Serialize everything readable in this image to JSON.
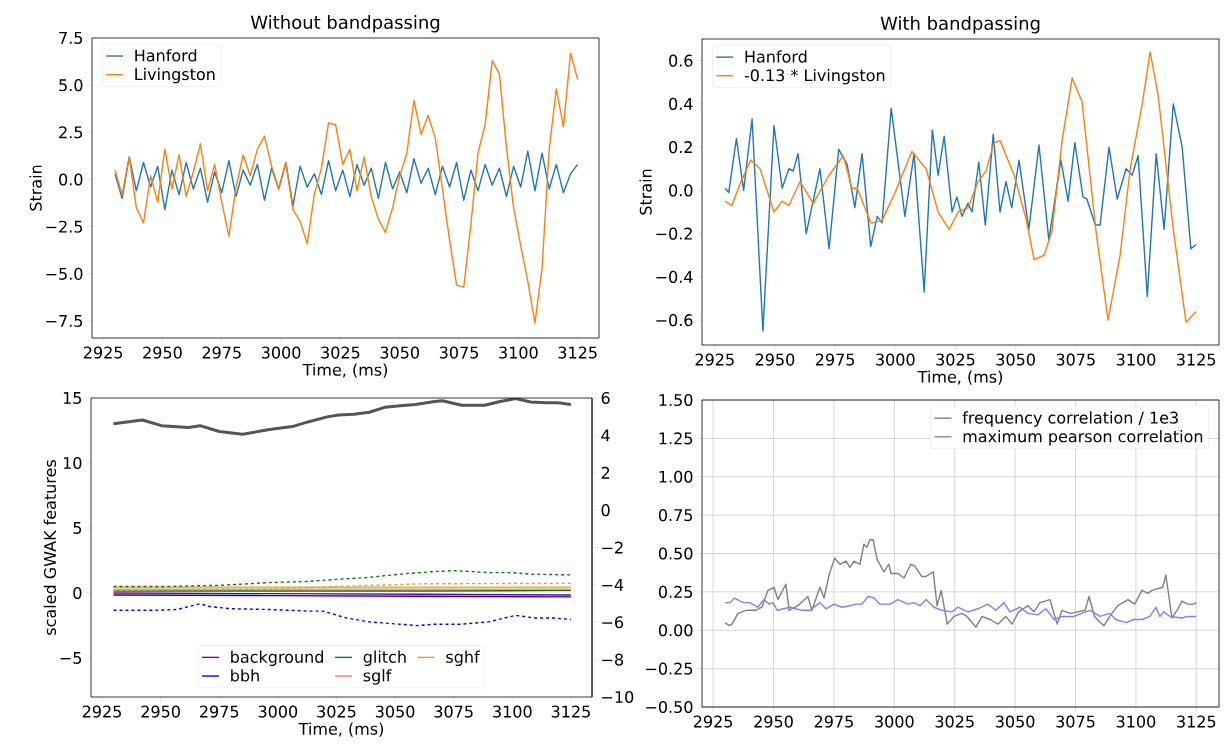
{
  "chart_data": [
    {
      "type": "line",
      "title": "Without bandpassing",
      "xlabel": "Time, (ms)",
      "ylabel": "Strain",
      "legend": "top left",
      "xlim": [
        2920.3,
        3134.0
      ],
      "xticks": [
        2925,
        2950,
        2975,
        3000,
        3025,
        3050,
        3075,
        3100,
        3125
      ],
      "ylim": [
        -8.4,
        7.5
      ],
      "yticks": [
        {
          "value": -7.5,
          "label": "−7.5"
        },
        {
          "value": -5.0,
          "label": "−5.0"
        },
        {
          "value": -2.5,
          "label": "−2.5"
        },
        {
          "value": 0,
          "label": "0.0"
        },
        2.5,
        {
          "value": 5,
          "label": "5.0"
        },
        7.5
      ],
      "x": [
        2930,
        2933,
        2936,
        2939,
        2942,
        2945,
        2948,
        2951,
        2954,
        2957,
        2960,
        2963,
        2966,
        2969,
        2972,
        2975,
        2978,
        2981,
        2984,
        2987,
        2990,
        2993,
        2996,
        2999,
        3002,
        3005,
        3008,
        3011,
        3014,
        3017,
        3020,
        3023,
        3026,
        3029,
        3032,
        3035,
        3038,
        3041,
        3044,
        3047,
        3050,
        3053,
        3056,
        3059,
        3062,
        3065,
        3068,
        3071,
        3074,
        3077,
        3080,
        3083,
        3086,
        3089,
        3092,
        3095,
        3098,
        3101,
        3104,
        3107,
        3110,
        3113,
        3116,
        3119,
        3122,
        3125
      ],
      "series": [
        {
          "name": "Hanford",
          "color": "#1f77b4",
          "values": [
            0.3,
            -1.0,
            1.2,
            -0.6,
            0.9,
            -0.4,
            0.7,
            -1.6,
            0.5,
            -0.8,
            0.9,
            -0.5,
            0.6,
            -1.2,
            0.4,
            -0.7,
            1.0,
            -0.9,
            0.5,
            -0.3,
            0.8,
            -1.1,
            0.6,
            -0.5,
            0.9,
            -1.4,
            0.7,
            -0.4,
            0.3,
            -0.8,
            1.0,
            -0.6,
            0.5,
            -0.9,
            0.8,
            -0.3,
            0.6,
            -1.0,
            0.9,
            -0.5,
            0.4,
            -0.7,
            1.1,
            -0.2,
            0.6,
            -0.8,
            0.7,
            -0.4,
            0.9,
            -1.1,
            0.5,
            -0.6,
            0.8,
            -0.3,
            0.6,
            -0.9,
            0.7,
            -0.4,
            1.5,
            -0.6,
            1.4,
            -0.5,
            0.8,
            -0.7,
            0.3,
            0.8
          ]
        },
        {
          "name": "Livingston",
          "color": "#ff7f0e",
          "values": [
            0.5,
            -0.8,
            1.2,
            -1.5,
            -2.3,
            0.2,
            -1.2,
            1.6,
            -0.5,
            1.3,
            -0.9,
            0.4,
            1.9,
            -0.6,
            0.8,
            -1.2,
            -3.0,
            -0.4,
            1.3,
            0.2,
            1.6,
            2.3,
            0.7,
            -0.5,
            0.9,
            -1.6,
            -2.2,
            -3.4,
            -0.8,
            0.6,
            3.0,
            2.9,
            0.8,
            1.6,
            -0.6,
            1.2,
            -0.9,
            -2.1,
            -2.8,
            -1.5,
            0.2,
            1.4,
            4.2,
            2.4,
            3.4,
            2.2,
            -0.5,
            -3.2,
            -5.6,
            -5.7,
            -2.4,
            1.4,
            2.9,
            6.3,
            5.6,
            1.7,
            -1.5,
            -3.5,
            -5.4,
            -7.6,
            -4.7,
            1.6,
            4.8,
            2.8,
            6.7,
            5.3
          ]
        }
      ]
    },
    {
      "type": "line",
      "title": "With bandpassing",
      "xlabel": "Time, (ms)",
      "ylabel": "Strain",
      "legend": "top left",
      "xlim": [
        2919.7,
        3134.5
      ],
      "xticks": [
        2925,
        2950,
        2975,
        3000,
        3025,
        3050,
        3075,
        3100,
        3125
      ],
      "ylim": [
        -0.715,
        0.7
      ],
      "yticks": [
        {
          "value": -0.6,
          "label": "−0.6"
        },
        {
          "value": -0.4,
          "label": "−0.4"
        },
        {
          "value": -0.2,
          "label": "−0.2"
        },
        {
          "value": 0,
          "label": "0.0"
        },
        0.2,
        0.4,
        0.6
      ],
      "series": [
        {
          "name": "Hanford",
          "color": "#1f77b4",
          "x": [
            2929.3,
            2930.8,
            2934,
            2937,
            2940.5,
            2945,
            2949.6,
            2953,
            2955.8,
            2957.6,
            2959.6,
            2963,
            2968.7,
            2972.5,
            2976.5,
            2980,
            2983.2,
            2986.2,
            2989.8,
            2992.5,
            2994.5,
            2998.3,
            3004,
            3007.8,
            3012,
            3015.4,
            3017.8,
            3020.3,
            3023.6,
            3025.6,
            3027.7,
            3030.2,
            3031.9,
            3034.7,
            3037.4,
            3040.7,
            3043.5,
            3046,
            3048.4,
            3051.4,
            3055.5,
            3059.7,
            3063.8,
            3068.8,
            3071.8,
            3074.6,
            3078,
            3079.6,
            3083.1,
            3085.1,
            3088.8,
            3092.2,
            3095.9,
            3098.4,
            3100.9,
            3104.7,
            3108.4,
            3111.7,
            3115.5,
            3119.2,
            3122.8,
            3125
          ],
          "values": [
            0.01,
            -0.01,
            0.24,
            0.0,
            0.33,
            -0.65,
            0.3,
            0.01,
            0.1,
            0.09,
            0.17,
            -0.2,
            0.1,
            -0.27,
            0.19,
            0.12,
            -0.08,
            0.17,
            -0.26,
            -0.12,
            -0.15,
            0.38,
            -0.12,
            0.17,
            -0.47,
            0.28,
            0.07,
            0.25,
            -0.1,
            -0.03,
            -0.12,
            -0.06,
            -0.1,
            0.13,
            -0.16,
            0.26,
            -0.1,
            0.04,
            -0.08,
            0.14,
            -0.18,
            0.21,
            -0.23,
            0.14,
            -0.05,
            0.22,
            -0.03,
            -0.04,
            -0.16,
            -0.16,
            0.2,
            -0.04,
            0.1,
            0.07,
            0.16,
            -0.49,
            0.17,
            -0.18,
            0.4,
            0.2,
            -0.27,
            -0.25
          ]
        },
        {
          "name": "-0.13 * Livingston",
          "color": "#ff7f0e",
          "x": [
            2929.3,
            2932.1,
            2935.5,
            2940,
            2943.8,
            2949.6,
            2953,
            2955.8,
            2960.4,
            2965.9,
            2972.5,
            2978.4,
            2982,
            2984.2,
            2989.8,
            2994.5,
            3000.3,
            3006.9,
            3012.8,
            3017.8,
            3022.4,
            3026.1,
            3030.2,
            3034.4,
            3037.7,
            3041,
            3043.5,
            3049.4,
            3054.3,
            3057.7,
            3061.8,
            3065.1,
            3069.3,
            3073.5,
            3077.6,
            3083.4,
            3088.4,
            3093.4,
            3097.6,
            3102.6,
            3105.9,
            3109.2,
            3115.5,
            3120.8,
            3125
          ],
          "values": [
            -0.05,
            -0.07,
            0.03,
            0.14,
            0.1,
            -0.1,
            -0.05,
            -0.07,
            0.04,
            -0.06,
            0.07,
            0.16,
            0.01,
            0.01,
            -0.15,
            -0.14,
            0.0,
            0.18,
            0.1,
            -0.1,
            -0.18,
            -0.1,
            -0.08,
            0.04,
            0.09,
            0.22,
            0.23,
            0.07,
            -0.13,
            -0.32,
            -0.3,
            -0.19,
            0.23,
            0.52,
            0.41,
            -0.19,
            -0.6,
            -0.3,
            0.1,
            0.4,
            0.64,
            0.44,
            -0.18,
            -0.61,
            -0.56
          ]
        }
      ]
    },
    {
      "type": "line",
      "xlabel": "Time, (ms)",
      "ylabel": "scaled GWAK features",
      "legend": "bottom",
      "xlim": [
        2920.3,
        3134.0
      ],
      "xticks": [
        2925,
        2950,
        2975,
        3000,
        3025,
        3050,
        3075,
        3100,
        3125
      ],
      "ylim": [
        -8,
        15
      ],
      "yticks": [
        {
          "value": -5,
          "label": "−5"
        },
        0,
        5,
        10,
        15
      ],
      "y2lim": [
        -10,
        6
      ],
      "y2ticks": [
        {
          "value": -10,
          "label": "−10"
        },
        {
          "value": -8,
          "label": "−8"
        },
        {
          "value": -6,
          "label": "−6"
        },
        {
          "value": -4,
          "label": "−4"
        },
        {
          "value": -2,
          "label": "−2"
        },
        0,
        2,
        4,
        6
      ],
      "series": [
        {
          "name": "background",
          "color": "#800080",
          "x": [
            2929.9,
            2996.4,
            3062.0,
            3125.0
          ],
          "values": [
            0.0,
            -0.05,
            -0.1,
            -0.15
          ]
        },
        {
          "name": "bbh",
          "color": "#0000ff",
          "x": [
            2929.9,
            2996.4,
            3062.0,
            3125.0
          ],
          "values": [
            -0.15,
            -0.2,
            -0.25,
            -0.3
          ]
        },
        {
          "name": "glitch",
          "color": "#008000",
          "x": [
            2929.9,
            2996.4,
            3062.0,
            3125.0
          ],
          "values": [
            0.15,
            0.15,
            0.15,
            0.2
          ]
        },
        {
          "name": "sglf",
          "color": "#fa8072",
          "x": [
            2929.9,
            2996.4,
            3062.0,
            3125.0
          ],
          "values": [
            0.3,
            0.3,
            0.3,
            0.3
          ]
        },
        {
          "name": "sghf",
          "color": "#daa520",
          "x": [
            2929.9,
            2996.4,
            3062.0,
            3125.0
          ],
          "values": [
            0.45,
            0.45,
            0.45,
            0.45
          ]
        },
        {
          "color": "#008000",
          "line_style": "dashed",
          "x": [
            2929.9,
            2952.1,
            2975.0,
            2996.4,
            3012.8,
            3024.3,
            3037.4,
            3053.8,
            3065.3,
            3075.1,
            3089.9,
            3099.7,
            3107.9,
            3125.0
          ],
          "values": [
            0.5,
            0.5,
            0.59,
            0.8,
            0.89,
            1.04,
            1.18,
            1.48,
            1.63,
            1.72,
            1.57,
            1.57,
            1.45,
            1.39
          ]
        },
        {
          "color": "#daa520",
          "line_style": "dashed",
          "x": [
            2929.9,
            2996.4,
            3029.2,
            3062.0,
            3125.0
          ],
          "values": [
            0.2,
            0.3,
            0.53,
            0.71,
            0.74
          ]
        },
        {
          "color": "#0000ff",
          "line_style": "dashed",
          "x": [
            2929.9,
            2947.1,
            2957.0,
            2966.8,
            2970.9,
            2980.0,
            2996.4,
            3012.8,
            3019.3,
            3029.2,
            3039.0,
            3045.6,
            3059.5,
            3066.9,
            3078.4,
            3089.9,
            3101.4,
            3109.6,
            3117.8,
            3125.0
          ],
          "values": [
            -1.33,
            -1.33,
            -1.27,
            -0.83,
            -1.04,
            -1.21,
            -1.27,
            -1.39,
            -1.39,
            -1.92,
            -2.22,
            -2.31,
            -2.51,
            -2.4,
            -2.4,
            -2.22,
            -1.72,
            -1.92,
            -1.92,
            -2.04
          ]
        },
        {
          "color": "#555555",
          "axis": "y2",
          "x": [
            2929.9,
            2942.2,
            2950.4,
            2961.9,
            2966.8,
            2975.0,
            2984.9,
            2996.4,
            3006.2,
            3012.8,
            3021.0,
            3025.9,
            3032.5,
            3039.0,
            3045.6,
            3052.2,
            3058.7,
            3066.9,
            3070.2,
            3078.4,
            3088.2,
            3094.8,
            3101.4,
            3107.9,
            3114.5,
            3119.4,
            3125.0
          ],
          "values": [
            4.62,
            4.82,
            4.52,
            4.42,
            4.52,
            4.21,
            4.06,
            4.31,
            4.47,
            4.72,
            4.99,
            5.09,
            5.13,
            5.24,
            5.5,
            5.58,
            5.65,
            5.81,
            5.85,
            5.61,
            5.61,
            5.81,
            5.97,
            5.79,
            5.75,
            5.75,
            5.65
          ]
        }
      ]
    },
    {
      "type": "line",
      "legend": "top right",
      "grid": true,
      "xlim": [
        2920.4,
        3134.4
      ],
      "xticks": [
        2925,
        2950,
        2975,
        3000,
        3025,
        3050,
        3075,
        3100,
        3125
      ],
      "ylim": [
        -0.5,
        1.5
      ],
      "yticks": [
        {
          "value": -0.5,
          "label": "−0.50"
        },
        {
          "value": -0.25,
          "label": "−0.25"
        },
        {
          "value": 0,
          "label": "0.00"
        },
        0.25,
        {
          "value": 0.5,
          "label": "0.50"
        },
        0.75,
        {
          "value": 1,
          "label": "1.00"
        },
        1.25,
        {
          "value": 1.5,
          "label": "1.50"
        }
      ],
      "series": [
        {
          "name": "frequency correlation / 1e3",
          "color": "#808080",
          "x": [
            2930.0,
            2931.6,
            2932.8,
            2935.3,
            2938.6,
            2942.7,
            2945.2,
            2947.7,
            2950.2,
            2951.8,
            2955.1,
            2956.5,
            2960.1,
            2964.2,
            2965.9,
            2969.2,
            2970.9,
            2973.0,
            2975.3,
            2977.5,
            2980.0,
            2981.6,
            2983.3,
            2985.8,
            2987.4,
            2988.6,
            2989.9,
            2991.2,
            2992.9,
            2995.7,
            2997.7,
            2998.7,
            3001.5,
            3004.0,
            3006.8,
            3008.4,
            3011.4,
            3013.1,
            3016.1,
            3017.7,
            3019.4,
            3021.9,
            3024.7,
            3028.0,
            3030.1,
            3033.8,
            3036.3,
            3039.6,
            3042.9,
            3046.2,
            3048.7,
            3051.5,
            3055.3,
            3057.8,
            3060.3,
            3064.4,
            3067.4,
            3069.4,
            3072.7,
            3076.0,
            3079.0,
            3080.6,
            3082.9,
            3084.6,
            3086.8,
            3089.2,
            3092.5,
            3096.7,
            3099.5,
            3102.5,
            3105.0,
            3106.6,
            3111.1,
            3112.4,
            3114.9,
            3117.4,
            3119.0,
            3121.5,
            3124.0,
            3125.0
          ],
          "values": [
            0.05,
            0.03,
            0.04,
            0.11,
            0.13,
            0.13,
            0.15,
            0.26,
            0.28,
            0.2,
            0.3,
            0.13,
            0.16,
            0.22,
            0.13,
            0.28,
            0.21,
            0.36,
            0.47,
            0.43,
            0.45,
            0.41,
            0.45,
            0.43,
            0.56,
            0.54,
            0.59,
            0.59,
            0.46,
            0.38,
            0.43,
            0.37,
            0.37,
            0.34,
            0.43,
            0.42,
            0.35,
            0.35,
            0.38,
            0.16,
            0.26,
            0.04,
            0.09,
            0.11,
            0.09,
            0.02,
            0.09,
            0.07,
            0.04,
            0.09,
            0.04,
            0.12,
            0.16,
            0.12,
            0.18,
            0.2,
            0.04,
            0.13,
            0.11,
            0.12,
            0.13,
            0.22,
            0.09,
            0.06,
            0.03,
            0.09,
            0.16,
            0.2,
            0.17,
            0.26,
            0.24,
            0.26,
            0.28,
            0.36,
            0.08,
            0.14,
            0.19,
            0.17,
            0.17,
            0.18
          ]
        },
        {
          "name": "maximum pearson correlation",
          "color": "#7f7fff",
          "x": [
            2930.0,
            2932.0,
            2933.9,
            2936.1,
            2937.7,
            2940.2,
            2943.5,
            2946.0,
            2948.2,
            2949.8,
            2951.5,
            2956.8,
            2961.8,
            2965.1,
            2969.2,
            2971.7,
            2975.0,
            2978.3,
            2981.6,
            2984.1,
            2986.6,
            2989.1,
            2991.6,
            2994.0,
            2998.2,
            3001.5,
            3005.6,
            3008.1,
            3010.6,
            3013.1,
            3016.4,
            3019.7,
            3023.8,
            3026.3,
            3030.5,
            3034.6,
            3038.7,
            3042.0,
            3045.4,
            3047.8,
            3052.0,
            3055.3,
            3059.4,
            3062.7,
            3066.1,
            3069.4,
            3074.3,
            3077.6,
            3081.0,
            3085.1,
            3089.2,
            3091.7,
            3095.9,
            3099.2,
            3102.5,
            3105.8,
            3108.3,
            3109.9,
            3111.6,
            3114.1,
            3119.0,
            3121.5,
            3125.0
          ],
          "values": [
            0.18,
            0.18,
            0.21,
            0.19,
            0.18,
            0.18,
            0.15,
            0.2,
            0.17,
            0.18,
            0.13,
            0.15,
            0.13,
            0.13,
            0.18,
            0.14,
            0.17,
            0.15,
            0.16,
            0.17,
            0.17,
            0.22,
            0.21,
            0.17,
            0.17,
            0.2,
            0.17,
            0.18,
            0.16,
            0.2,
            0.15,
            0.13,
            0.12,
            0.15,
            0.12,
            0.14,
            0.17,
            0.13,
            0.18,
            0.12,
            0.15,
            0.11,
            0.1,
            0.14,
            0.07,
            0.09,
            0.09,
            0.11,
            0.13,
            0.09,
            0.11,
            0.07,
            0.05,
            0.07,
            0.07,
            0.09,
            0.15,
            0.09,
            0.12,
            0.09,
            0.08,
            0.09,
            0.09
          ]
        }
      ]
    }
  ]
}
